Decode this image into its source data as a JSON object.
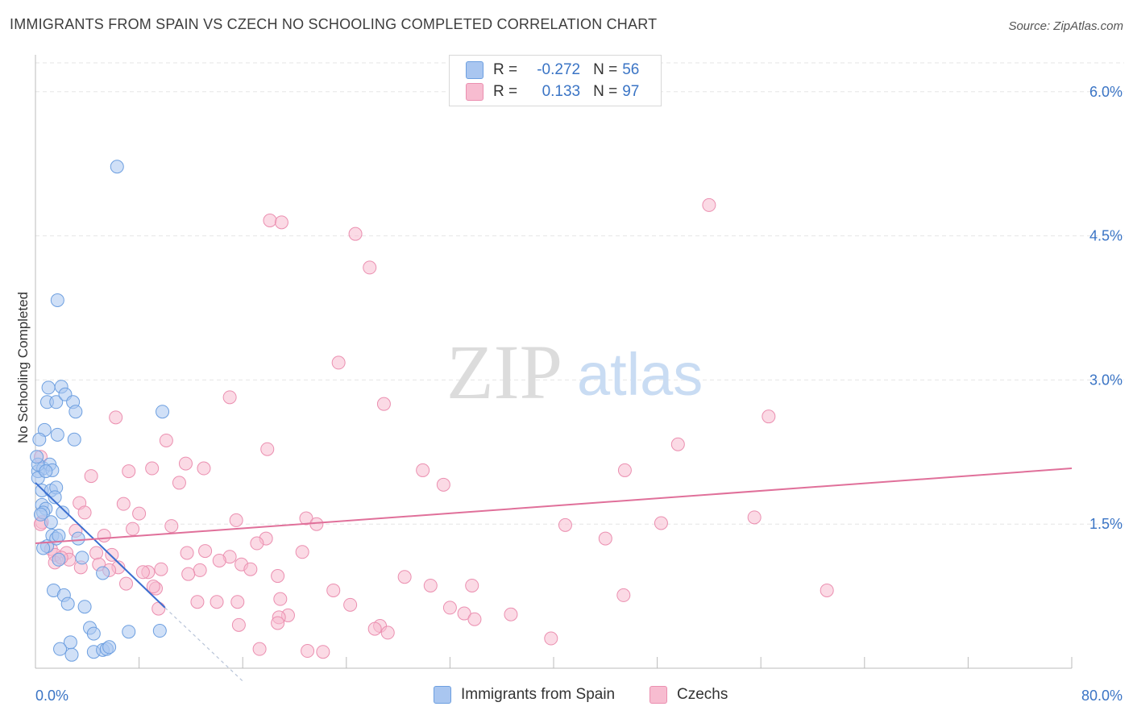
{
  "header": {
    "title": "IMMIGRANTS FROM SPAIN VS CZECH NO SCHOOLING COMPLETED CORRELATION CHART",
    "source": "Source: ZipAtlas.com"
  },
  "watermark": {
    "zip": "ZIP",
    "atlas": "atlas"
  },
  "legend_top": {
    "rows": [
      {
        "r_label": "R =",
        "r_value": "-0.272",
        "n_label": "N =",
        "n_value": "56"
      },
      {
        "r_label": "R =",
        "r_value": "0.133",
        "n_label": "N =",
        "n_value": "97"
      }
    ]
  },
  "legend_bottom": {
    "items": [
      {
        "label": "Immigrants from Spain"
      },
      {
        "label": "Czechs"
      }
    ]
  },
  "colors": {
    "spain_fill": "#a9c6f0",
    "spain_stroke": "#6d9fe0",
    "spain_line": "#3b6fd0",
    "czech_fill": "#f7bcd0",
    "czech_stroke": "#eb8fb0",
    "czech_line": "#e0709a",
    "tick_label": "#3a74c5",
    "grid": "#e6e6e6"
  },
  "chart_data": {
    "type": "scatter",
    "title": "IMMIGRANTS FROM SPAIN VS CZECH NO SCHOOLING COMPLETED CORRELATION CHART",
    "xlabel": "",
    "ylabel": "No Schooling Completed",
    "xlim": [
      0,
      80
    ],
    "ylim": [
      0,
      6.3
    ],
    "x_tick_labels": [
      {
        "value": 0,
        "label": "0.0%"
      },
      {
        "value": 80,
        "label": "80.0%"
      }
    ],
    "y_tick_labels": [
      {
        "value": 1.5,
        "label": "1.5%"
      },
      {
        "value": 3.0,
        "label": "3.0%"
      },
      {
        "value": 4.5,
        "label": "4.5%"
      },
      {
        "value": 6.0,
        "label": "6.0%"
      }
    ],
    "x_minor_ticks": [
      8,
      16,
      24,
      32,
      40,
      48,
      56,
      64,
      72,
      80
    ],
    "grid": true,
    "legend_position": "top-center",
    "series": [
      {
        "name": "Immigrants from Spain",
        "color": "#a9c6f0",
        "points": [
          [
            6.3,
            5.22
          ],
          [
            1.7,
            3.83
          ],
          [
            1.0,
            2.92
          ],
          [
            2.0,
            2.93
          ],
          [
            0.9,
            2.77
          ],
          [
            1.6,
            2.77
          ],
          [
            2.3,
            2.85
          ],
          [
            2.9,
            2.77
          ],
          [
            3.1,
            2.67
          ],
          [
            9.8,
            2.67
          ],
          [
            0.7,
            2.48
          ],
          [
            1.7,
            2.43
          ],
          [
            3.0,
            2.38
          ],
          [
            0.3,
            2.38
          ],
          [
            0.2,
            2.05
          ],
          [
            0.6,
            2.08
          ],
          [
            1.1,
            2.12
          ],
          [
            1.3,
            2.06
          ],
          [
            0.2,
            1.98
          ],
          [
            0.5,
            1.85
          ],
          [
            1.2,
            1.85
          ],
          [
            1.6,
            1.88
          ],
          [
            1.5,
            1.78
          ],
          [
            0.5,
            1.7
          ],
          [
            0.8,
            1.66
          ],
          [
            0.6,
            1.62
          ],
          [
            2.1,
            1.62
          ],
          [
            1.2,
            1.52
          ],
          [
            1.3,
            1.38
          ],
          [
            1.6,
            1.35
          ],
          [
            1.8,
            1.38
          ],
          [
            3.3,
            1.35
          ],
          [
            0.9,
            1.27
          ],
          [
            0.6,
            1.25
          ],
          [
            3.6,
            1.15
          ],
          [
            1.8,
            1.13
          ],
          [
            5.2,
            0.99
          ],
          [
            1.4,
            0.81
          ],
          [
            2.2,
            0.76
          ],
          [
            2.5,
            0.67
          ],
          [
            3.8,
            0.64
          ],
          [
            4.2,
            0.42
          ],
          [
            4.5,
            0.36
          ],
          [
            7.2,
            0.38
          ],
          [
            9.6,
            0.39
          ],
          [
            2.7,
            0.27
          ],
          [
            1.9,
            0.2
          ],
          [
            2.8,
            0.14
          ],
          [
            4.5,
            0.17
          ],
          [
            5.2,
            0.19
          ],
          [
            5.5,
            0.2
          ],
          [
            5.7,
            0.22
          ],
          [
            0.2,
            2.12
          ],
          [
            0.4,
            1.6
          ],
          [
            0.1,
            2.2
          ],
          [
            0.8,
            2.05
          ]
        ]
      },
      {
        "name": "Czechs",
        "color": "#f7bcd0",
        "points": [
          [
            52.0,
            4.82
          ],
          [
            18.1,
            4.66
          ],
          [
            19.0,
            4.64
          ],
          [
            24.7,
            4.52
          ],
          [
            25.8,
            4.17
          ],
          [
            23.4,
            3.18
          ],
          [
            15.0,
            2.82
          ],
          [
            26.9,
            2.75
          ],
          [
            56.6,
            2.62
          ],
          [
            6.2,
            2.61
          ],
          [
            10.1,
            2.37
          ],
          [
            17.9,
            2.28
          ],
          [
            49.6,
            2.33
          ],
          [
            11.6,
            2.13
          ],
          [
            9.0,
            2.08
          ],
          [
            13.0,
            2.08
          ],
          [
            7.2,
            2.05
          ],
          [
            29.9,
            2.06
          ],
          [
            45.5,
            2.06
          ],
          [
            4.3,
            2.0
          ],
          [
            11.1,
            1.93
          ],
          [
            31.5,
            1.91
          ],
          [
            6.8,
            1.71
          ],
          [
            3.4,
            1.72
          ],
          [
            3.8,
            1.62
          ],
          [
            8.0,
            1.61
          ],
          [
            0.5,
            1.52
          ],
          [
            20.9,
            1.56
          ],
          [
            15.5,
            1.54
          ],
          [
            21.7,
            1.5
          ],
          [
            55.5,
            1.57
          ],
          [
            40.9,
            1.49
          ],
          [
            48.3,
            1.51
          ],
          [
            10.5,
            1.48
          ],
          [
            7.5,
            1.45
          ],
          [
            3.1,
            1.43
          ],
          [
            5.3,
            1.38
          ],
          [
            17.8,
            1.35
          ],
          [
            17.1,
            1.3
          ],
          [
            44.0,
            1.35
          ],
          [
            1.2,
            1.24
          ],
          [
            2.4,
            1.2
          ],
          [
            1.5,
            1.18
          ],
          [
            4.7,
            1.2
          ],
          [
            5.9,
            1.18
          ],
          [
            11.7,
            1.2
          ],
          [
            13.1,
            1.22
          ],
          [
            15.0,
            1.16
          ],
          [
            20.6,
            1.21
          ],
          [
            14.2,
            1.12
          ],
          [
            15.9,
            1.08
          ],
          [
            1.5,
            1.1
          ],
          [
            2.6,
            1.13
          ],
          [
            3.5,
            1.05
          ],
          [
            4.9,
            1.08
          ],
          [
            6.4,
            1.05
          ],
          [
            8.7,
            1.0
          ],
          [
            5.7,
            1.02
          ],
          [
            9.7,
            1.03
          ],
          [
            8.3,
            1.0
          ],
          [
            12.7,
            1.02
          ],
          [
            16.6,
            1.03
          ],
          [
            18.7,
            0.96
          ],
          [
            28.5,
            0.95
          ],
          [
            30.5,
            0.86
          ],
          [
            33.7,
            0.86
          ],
          [
            9.3,
            0.83
          ],
          [
            23.0,
            0.81
          ],
          [
            61.1,
            0.81
          ],
          [
            45.4,
            0.76
          ],
          [
            18.9,
            0.72
          ],
          [
            12.5,
            0.69
          ],
          [
            14.0,
            0.69
          ],
          [
            15.6,
            0.69
          ],
          [
            24.3,
            0.66
          ],
          [
            32.0,
            0.63
          ],
          [
            9.5,
            0.62
          ],
          [
            19.5,
            0.55
          ],
          [
            18.8,
            0.53
          ],
          [
            33.1,
            0.57
          ],
          [
            36.7,
            0.56
          ],
          [
            33.9,
            0.51
          ],
          [
            18.7,
            0.47
          ],
          [
            15.7,
            0.45
          ],
          [
            26.6,
            0.44
          ],
          [
            27.2,
            0.37
          ],
          [
            39.8,
            0.31
          ],
          [
            17.3,
            0.2
          ],
          [
            21.0,
            0.18
          ],
          [
            22.2,
            0.17
          ],
          [
            11.8,
            0.98
          ],
          [
            7.0,
            0.88
          ],
          [
            2.0,
            1.15
          ],
          [
            9.1,
            0.85
          ],
          [
            26.2,
            0.41
          ],
          [
            0.4,
            2.2
          ],
          [
            0.4,
            1.5
          ]
        ]
      }
    ],
    "trend_lines": [
      {
        "series": "Immigrants from Spain",
        "x0": 0,
        "y0": 1.93,
        "x1": 10,
        "y1": 0.63,
        "dashed_to_x": 16,
        "dashed_to_y": -0.15
      },
      {
        "series": "Czechs",
        "x0": 0,
        "y0": 1.3,
        "x1": 80,
        "y1": 2.08
      }
    ]
  }
}
